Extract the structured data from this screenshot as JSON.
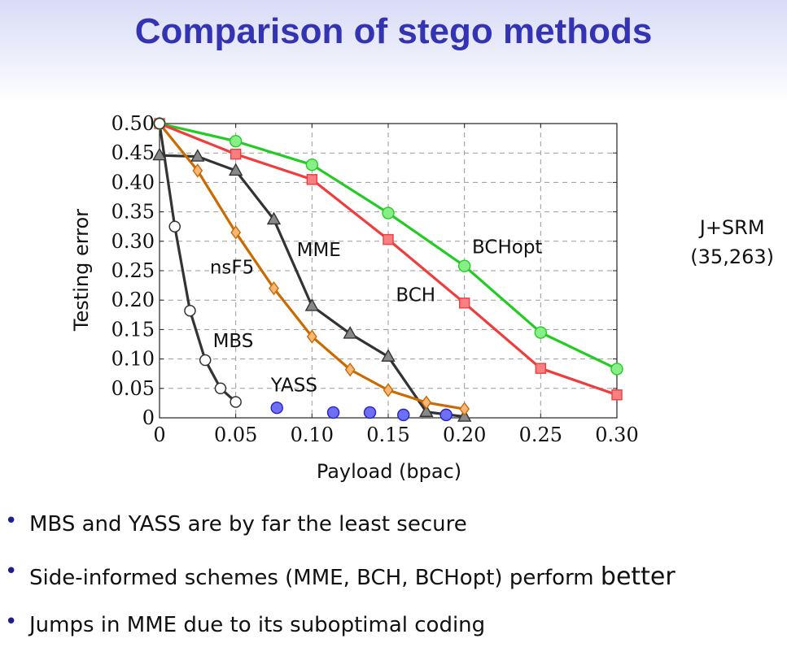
{
  "slide": {
    "title": "Comparison of stego methods",
    "side_note": [
      "J+SRM",
      "(35,263)"
    ],
    "bullets": [
      {
        "text": "MBS and YASS are by far the least secure",
        "emph": ""
      },
      {
        "text": "Side-informed schemes (MME, BCH, BCHopt) perform ",
        "emph": "better"
      },
      {
        "text": "Jumps in MME due to its suboptimal coding",
        "emph": ""
      }
    ]
  },
  "chart_data": {
    "type": "line",
    "xlabel": "Payload (bpac)",
    "ylabel": "Testing error",
    "xlim": [
      0,
      0.3
    ],
    "ylim": [
      0,
      0.5
    ],
    "x_ticks": [
      0,
      0.05,
      0.1,
      0.15,
      0.2,
      0.25,
      0.3
    ],
    "x_tick_labels": [
      "0",
      "0.05",
      "0.10",
      "0.15",
      "0.20",
      "0.25",
      "0.30"
    ],
    "y_ticks": [
      0,
      0.05,
      0.1,
      0.15,
      0.2,
      0.25,
      0.3,
      0.35,
      0.4,
      0.45,
      0.5
    ],
    "y_tick_labels": [
      "0",
      "0.05",
      "0.10",
      "0.15",
      "0.20",
      "0.25",
      "0.30",
      "0.35",
      "0.40",
      "0.45",
      "0.50"
    ],
    "grid": true,
    "series": [
      {
        "name": "BCHopt",
        "color": "#22cc22",
        "fill": "#88ee88",
        "marker": "circle",
        "line": true,
        "points": [
          [
            0,
            0.5
          ],
          [
            0.05,
            0.47
          ],
          [
            0.1,
            0.43
          ],
          [
            0.15,
            0.348
          ],
          [
            0.2,
            0.258
          ],
          [
            0.25,
            0.145
          ],
          [
            0.3,
            0.083
          ]
        ]
      },
      {
        "name": "BCH",
        "color": "#f03c3c",
        "fill": "#f88080",
        "marker": "square",
        "line": true,
        "points": [
          [
            0,
            0.5
          ],
          [
            0.05,
            0.448
          ],
          [
            0.1,
            0.405
          ],
          [
            0.15,
            0.303
          ],
          [
            0.2,
            0.195
          ],
          [
            0.25,
            0.084
          ],
          [
            0.3,
            0.039
          ]
        ]
      },
      {
        "name": "MME",
        "color": "#333333",
        "fill": "#888888",
        "marker": "triangle",
        "line": true,
        "points": [
          [
            0,
            0.446
          ],
          [
            0.025,
            0.444
          ],
          [
            0.05,
            0.42
          ],
          [
            0.075,
            0.337
          ],
          [
            0.1,
            0.19
          ],
          [
            0.125,
            0.143
          ],
          [
            0.15,
            0.104
          ],
          [
            0.175,
            0.01
          ],
          [
            0.2,
            0.002
          ]
        ]
      },
      {
        "name": "nsF5",
        "color": "#cc6a00",
        "fill": "#f5b878",
        "marker": "diamond",
        "line": true,
        "points": [
          [
            0,
            0.5
          ],
          [
            0.025,
            0.42
          ],
          [
            0.05,
            0.315
          ],
          [
            0.075,
            0.22
          ],
          [
            0.1,
            0.138
          ],
          [
            0.125,
            0.082
          ],
          [
            0.15,
            0.047
          ],
          [
            0.175,
            0.026
          ],
          [
            0.2,
            0.015
          ]
        ]
      },
      {
        "name": "MBS",
        "color": "#333333",
        "fill": "none",
        "marker": "open-circle",
        "line": true,
        "points": [
          [
            0,
            0.5
          ],
          [
            0.01,
            0.325
          ],
          [
            0.02,
            0.182
          ],
          [
            0.03,
            0.098
          ],
          [
            0.04,
            0.05
          ],
          [
            0.05,
            0.027
          ]
        ]
      },
      {
        "name": "YASS",
        "color": "#2222cc",
        "fill": "#6f6ff5",
        "marker": "circle",
        "line": false,
        "points": [
          [
            0.077,
            0.017
          ],
          [
            0.114,
            0.009
          ],
          [
            0.138,
            0.009
          ],
          [
            0.16,
            0.005
          ],
          [
            0.188,
            0.005
          ]
        ]
      }
    ],
    "annotations": [
      {
        "text": "BCHopt",
        "x": 0.205,
        "y": 0.28
      },
      {
        "text": "BCH",
        "x": 0.155,
        "y": 0.198
      },
      {
        "text": "MME",
        "x": 0.09,
        "y": 0.275
      },
      {
        "text": "nsF5",
        "x": 0.033,
        "y": 0.245
      },
      {
        "text": "MBS",
        "x": 0.035,
        "y": 0.12
      },
      {
        "text": "YASS",
        "x": 0.073,
        "y": 0.045
      }
    ]
  }
}
